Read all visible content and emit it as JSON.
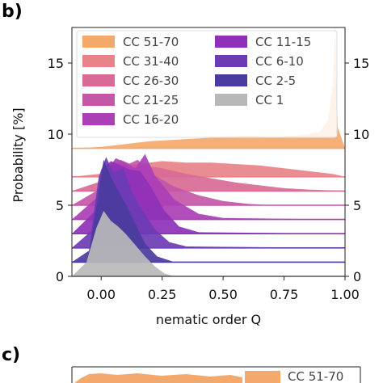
{
  "panels": [
    {
      "label": "b)"
    },
    {
      "label": "c)"
    }
  ],
  "chart_data": [
    {
      "type": "area",
      "panel": "b)",
      "xlabel": "nematic order Q",
      "ylabel": "Probability [%]",
      "xlim": [
        -0.12,
        1.0
      ],
      "ylim": [
        0,
        17.5
      ],
      "xticks": [
        "0.00",
        "0.25",
        "0.50",
        "0.75",
        "1.00"
      ],
      "yticks": [
        "0",
        "5",
        "10",
        "15"
      ],
      "y_axis_labels_both_sides": true,
      "grid": false,
      "legend": {
        "placement": "top",
        "columns": 2
      },
      "series": [
        {
          "name": "CC 51-70",
          "color": "#f4a96c",
          "baseline": 9.0,
          "x": [
            -0.12,
            0.0,
            0.2,
            0.4,
            0.5,
            0.6,
            0.7,
            0.8,
            0.85,
            0.9,
            0.93,
            0.95,
            0.96,
            0.97,
            1.0
          ],
          "y": [
            0.0,
            0.1,
            0.5,
            0.7,
            0.8,
            0.9,
            0.8,
            0.9,
            1.0,
            1.2,
            2.0,
            4.5,
            8.6,
            1.5,
            0.0
          ]
        },
        {
          "name": "CC 31-40",
          "color": "#e8838a",
          "baseline": 7.0,
          "x": [
            -0.12,
            0.05,
            0.15,
            0.25,
            0.35,
            0.45,
            0.55,
            0.65,
            0.75,
            0.85,
            0.95,
            1.0
          ],
          "y": [
            0.0,
            0.3,
            0.9,
            1.1,
            1.0,
            1.0,
            0.9,
            0.8,
            0.6,
            0.4,
            0.2,
            0.0
          ]
        },
        {
          "name": "CC 26-30",
          "color": "#d86a95",
          "baseline": 6.0,
          "x": [
            -0.12,
            0.02,
            0.08,
            0.12,
            0.18,
            0.25,
            0.35,
            0.45,
            0.55,
            0.65,
            0.75,
            0.85,
            1.0
          ],
          "y": [
            0.0,
            0.8,
            2.2,
            1.9,
            1.8,
            1.6,
            1.2,
            0.9,
            0.6,
            0.4,
            0.2,
            0.1,
            0.0
          ]
        },
        {
          "name": "CC 21-25",
          "color": "#c457a8",
          "baseline": 5.0,
          "x": [
            -0.12,
            0.0,
            0.05,
            0.1,
            0.15,
            0.2,
            0.3,
            0.4,
            0.5,
            0.6,
            0.7,
            1.0
          ],
          "y": [
            0.0,
            1.2,
            3.0,
            2.8,
            3.2,
            2.3,
            1.3,
            0.7,
            0.3,
            0.1,
            0.0,
            0.0
          ]
        },
        {
          "name": "CC 16-20",
          "color": "#aa3fb6",
          "baseline": 4.0,
          "x": [
            -0.12,
            -0.02,
            0.02,
            0.06,
            0.1,
            0.14,
            0.18,
            0.22,
            0.3,
            0.4,
            0.5,
            1.0
          ],
          "y": [
            0.0,
            1.5,
            3.4,
            4.3,
            4.0,
            3.6,
            4.6,
            3.1,
            1.4,
            0.4,
            0.1,
            0.0
          ]
        },
        {
          "name": "CC 11-15",
          "color": "#8e31b8",
          "baseline": 3.0,
          "x": [
            -0.12,
            -0.03,
            0.0,
            0.04,
            0.08,
            0.12,
            0.16,
            0.2,
            0.26,
            0.32,
            0.4,
            1.0
          ],
          "y": [
            0.0,
            1.5,
            4.5,
            5.1,
            4.8,
            4.5,
            4.4,
            3.4,
            1.6,
            0.5,
            0.1,
            0.0
          ]
        },
        {
          "name": "CC 6-10",
          "color": "#6d3bb4",
          "baseline": 2.0,
          "x": [
            -0.12,
            -0.04,
            -0.01,
            0.02,
            0.05,
            0.09,
            0.13,
            0.17,
            0.22,
            0.28,
            0.35,
            1.0
          ],
          "y": [
            0.0,
            1.2,
            5.0,
            6.4,
            5.3,
            5.6,
            3.8,
            2.6,
            1.3,
            0.4,
            0.1,
            0.0
          ]
        },
        {
          "name": "CC 2-5",
          "color": "#4a3c9e",
          "baseline": 1.0,
          "x": [
            -0.12,
            -0.05,
            -0.02,
            0.01,
            0.04,
            0.07,
            0.1,
            0.14,
            0.18,
            0.23,
            0.3,
            1.0
          ],
          "y": [
            0.0,
            0.8,
            3.8,
            7.2,
            6.0,
            5.0,
            4.1,
            2.7,
            1.3,
            0.4,
            0.0,
            0.0
          ]
        },
        {
          "name": "CC 1",
          "color": "#b8b8b8",
          "baseline": 0.0,
          "x": [
            -0.12,
            -0.06,
            -0.02,
            0.01,
            0.04,
            0.07,
            0.1,
            0.14,
            0.18,
            0.22,
            0.26,
            0.3,
            1.0
          ],
          "y": [
            0.0,
            1.0,
            3.4,
            4.6,
            3.9,
            3.5,
            3.0,
            2.2,
            1.4,
            0.7,
            0.2,
            0.0,
            0.0
          ]
        }
      ]
    },
    {
      "type": "area",
      "panel": "c)",
      "legend": {
        "placement": "top-right"
      },
      "series": [
        {
          "name": "CC 51-70",
          "color": "#f4a96c"
        }
      ]
    }
  ]
}
